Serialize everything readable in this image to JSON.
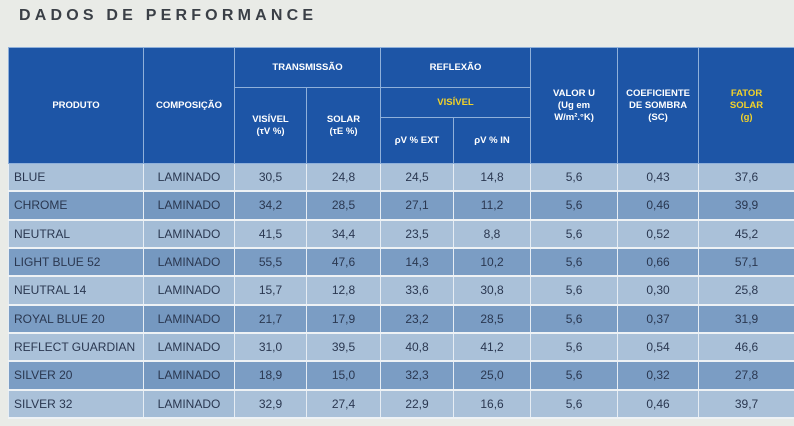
{
  "title": "DADOS DE PERFORMANCE",
  "headers": {
    "produto": "PRODUTO",
    "composicao": "COMPOSIÇÃO",
    "transmissao": "TRANSMISSÃO",
    "reflexao": "REFLEXÃO",
    "visivel_reflexao": "VISÍVEL",
    "visivel_transmissao": "VISÍVEL",
    "visivel_transmissao_unit": "(τV %)",
    "solar": "SOLAR",
    "solar_unit": "(τE %)",
    "rho_ext": "ρV % EXT",
    "rho_in": "ρV % IN",
    "valor_u": "VALOR U",
    "valor_u_unit": "(Ug em",
    "valor_u_unit2": "W/m².°K)",
    "coef_sombra": "COEFICIENTE",
    "coef_sombra2": "DE SOMBRA",
    "coef_sombra_unit": "(SC)",
    "fator_solar": "FATOR",
    "fator_solar2": "SOLAR",
    "fator_solar_unit": "(g)"
  },
  "rows": [
    {
      "produto": "BLUE",
      "composicao": "LAMINADO",
      "tv": "30,5",
      "te": "24,8",
      "rext": "24,5",
      "rin": "14,8",
      "u": "5,6",
      "sc": "0,43",
      "g": "37,6"
    },
    {
      "produto": "CHROME",
      "composicao": "LAMINADO",
      "tv": "34,2",
      "te": "28,5",
      "rext": "27,1",
      "rin": "11,2",
      "u": "5,6",
      "sc": "0,46",
      "g": "39,9"
    },
    {
      "produto": "NEUTRAL",
      "composicao": "LAMINADO",
      "tv": "41,5",
      "te": "34,4",
      "rext": "23,5",
      "rin": "8,8",
      "u": "5,6",
      "sc": "0,52",
      "g": "45,2"
    },
    {
      "produto": "LIGHT BLUE 52",
      "composicao": "LAMINADO",
      "tv": "55,5",
      "te": "47,6",
      "rext": "14,3",
      "rin": "10,2",
      "u": "5,6",
      "sc": "0,66",
      "g": "57,1"
    },
    {
      "produto": "NEUTRAL 14",
      "composicao": "LAMINADO",
      "tv": "15,7",
      "te": "12,8",
      "rext": "33,6",
      "rin": "30,8",
      "u": "5,6",
      "sc": "0,30",
      "g": "25,8"
    },
    {
      "produto": "ROYAL BLUE 20",
      "composicao": "LAMINADO",
      "tv": "21,7",
      "te": "17,9",
      "rext": "23,2",
      "rin": "28,5",
      "u": "5,6",
      "sc": "0,37",
      "g": "31,9"
    },
    {
      "produto": "REFLECT GUARDIAN",
      "composicao": "LAMINADO",
      "tv": "31,0",
      "te": "39,5",
      "rext": "40,8",
      "rin": "41,2",
      "u": "5,6",
      "sc": "0,54",
      "g": "46,6"
    },
    {
      "produto": "SILVER 20",
      "composicao": "LAMINADO",
      "tv": "18,9",
      "te": "15,0",
      "rext": "32,3",
      "rin": "25,0",
      "u": "5,6",
      "sc": "0,32",
      "g": "27,8"
    },
    {
      "produto": "SILVER 32",
      "composicao": "LAMINADO",
      "tv": "32,9",
      "te": "27,4",
      "rext": "22,9",
      "rin": "16,6",
      "u": "5,6",
      "sc": "0,46",
      "g": "39,7"
    }
  ],
  "colors": {
    "header_bg": "#1d55a6",
    "row_dark": "#7b9dc4",
    "row_light": "#aac1d9",
    "accent_yellow": "#f2d229"
  }
}
